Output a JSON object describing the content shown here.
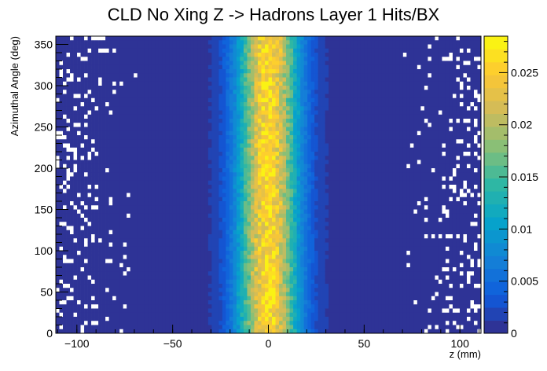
{
  "chart_data": {
    "type": "heatmap",
    "title": "CLD No Xing Z -> Hadrons Layer 1 Hits/BX",
    "xlabel": "z (mm)",
    "ylabel": "Azimuthal Angle (deg)",
    "xlim": [
      -111,
      111
    ],
    "ylim": [
      0,
      360
    ],
    "x_ticks": [
      -100,
      -50,
      0,
      50,
      100
    ],
    "x_tick_labels": [
      "−100",
      "−50",
      "0",
      "50",
      "100"
    ],
    "y_ticks": [
      0,
      50,
      100,
      150,
      200,
      250,
      300,
      350
    ],
    "y_tick_labels": [
      "0",
      "50",
      "100",
      "150",
      "200",
      "250",
      "300",
      "350"
    ],
    "colorbar": {
      "range": [
        0,
        0.0285
      ],
      "ticks": [
        0,
        0.005,
        0.01,
        0.015,
        0.02,
        0.025
      ],
      "tick_labels": [
        "0",
        "0.005",
        "0.01",
        "0.015",
        "0.02",
        "0.025"
      ]
    },
    "distribution": {
      "description_free_params": true,
      "peak_z": 0,
      "peak_value": 0.026,
      "gaussian_sigma_z": 11,
      "floor_value": 0.0007,
      "x_bins": 120,
      "y_bins": 72,
      "empty_bin_fraction_at_edges": 0.12
    },
    "colors": {
      "palette": [
        "#352a87",
        "#0f5cdd",
        "#1481d6",
        "#06a4ca",
        "#2eb7a4",
        "#87bf77",
        "#d1bb59",
        "#fec832",
        "#f9fb0e"
      ],
      "empty_bin": "#ffffff",
      "frame": "#000000"
    },
    "grid": false,
    "legend": "colorbar-right"
  }
}
